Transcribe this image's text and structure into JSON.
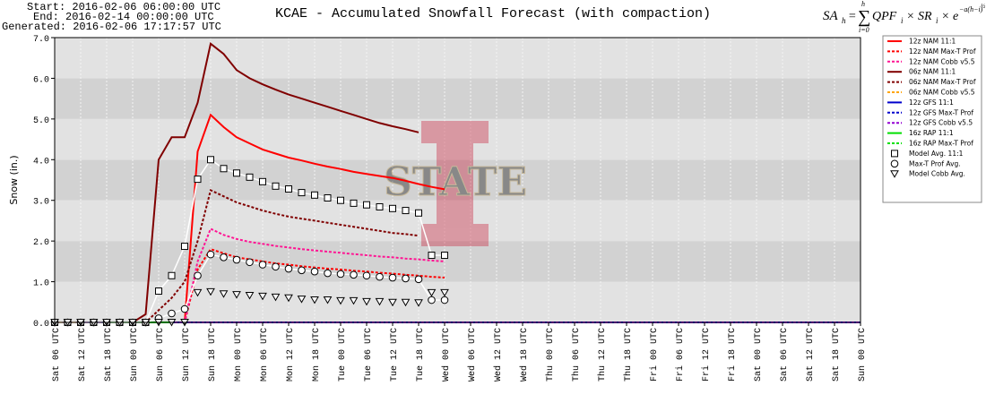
{
  "header": {
    "start": "Start: 2016-02-06 06:00:00 UTC",
    "end": "End: 2016-02-14 00:00:00 UTC",
    "generated": "Generated: 2016-02-06 17:17:57 UTC"
  },
  "formula": [
    "SA",
    "h",
    "=",
    "∑",
    "h",
    "i=0",
    "QPF",
    "i",
    "× SR",
    "i",
    "× e",
    "−a(h−i)",
    "½"
  ],
  "watermark": "STATE",
  "chart_data": {
    "type": "line",
    "title": "KCAE - Accumulated Snowfall Forecast (with compaction)",
    "y_label": "Snow (in.)",
    "legend": "right",
    "grid": true,
    "x": [
      0,
      3,
      6,
      9,
      12,
      15,
      18,
      21,
      24,
      27,
      30,
      33,
      36,
      39,
      42,
      45,
      48,
      51,
      54,
      57,
      60,
      63,
      66,
      69,
      72,
      75,
      78,
      81,
      84,
      87,
      90,
      186
    ],
    "xlim": [
      0,
      186
    ],
    "xticks": [
      {
        "value": 0,
        "label": "Sat 06 UTC"
      },
      {
        "value": 6,
        "label": "Sat 12 UTC"
      },
      {
        "value": 12,
        "label": "Sat 18 UTC"
      },
      {
        "value": 18,
        "label": "Sun 00 UTC"
      },
      {
        "value": 24,
        "label": "Sun 06 UTC"
      },
      {
        "value": 30,
        "label": "Sun 12 UTC"
      },
      {
        "value": 36,
        "label": "Sun 18 UTC"
      },
      {
        "value": 42,
        "label": "Mon 00 UTC"
      },
      {
        "value": 48,
        "label": "Mon 06 UTC"
      },
      {
        "value": 54,
        "label": "Mon 12 UTC"
      },
      {
        "value": 60,
        "label": "Mon 18 UTC"
      },
      {
        "value": 66,
        "label": "Tue 00 UTC"
      },
      {
        "value": 72,
        "label": "Tue 06 UTC"
      },
      {
        "value": 78,
        "label": "Tue 12 UTC"
      },
      {
        "value": 84,
        "label": "Tue 18 UTC"
      },
      {
        "value": 90,
        "label": "Wed 00 UTC"
      },
      {
        "value": 96,
        "label": "Wed 06 UTC"
      },
      {
        "value": 102,
        "label": "Wed 12 UTC"
      },
      {
        "value": 108,
        "label": "Wed 18 UTC"
      },
      {
        "value": 114,
        "label": "Thu 00 UTC"
      },
      {
        "value": 120,
        "label": "Thu 06 UTC"
      },
      {
        "value": 126,
        "label": "Thu 12 UTC"
      },
      {
        "value": 132,
        "label": "Thu 18 UTC"
      },
      {
        "value": 138,
        "label": "Fri 00 UTC"
      },
      {
        "value": 144,
        "label": "Fri 06 UTC"
      },
      {
        "value": 150,
        "label": "Fri 12 UTC"
      },
      {
        "value": 156,
        "label": "Fri 18 UTC"
      },
      {
        "value": 162,
        "label": "Sat 00 UTC"
      },
      {
        "value": 168,
        "label": "Sat 06 UTC"
      },
      {
        "value": 174,
        "label": "Sat 12 UTC"
      },
      {
        "value": 180,
        "label": "Sat 18 UTC"
      },
      {
        "value": 186,
        "label": "Sun 00 UTC"
      }
    ],
    "ylim": [
      0,
      7
    ],
    "yticks": [
      {
        "value": 0,
        "label": "0.0"
      },
      {
        "value": 1,
        "label": "1.0"
      },
      {
        "value": 2,
        "label": "2.0"
      },
      {
        "value": 3,
        "label": "3.0"
      },
      {
        "value": 4,
        "label": "4.0"
      },
      {
        "value": 5,
        "label": "5.0"
      },
      {
        "value": 6,
        "label": "6.0"
      },
      {
        "value": 7,
        "label": "7.0"
      }
    ],
    "series": [
      {
        "name": "12z NAM 11:1",
        "color": "#ff0000",
        "style": "solid",
        "values": [
          null,
          null,
          0,
          0,
          0,
          0,
          0,
          0,
          0,
          0,
          0,
          4.2,
          5.1,
          4.8,
          4.55,
          4.4,
          4.25,
          4.15,
          4.05,
          3.98,
          3.9,
          3.83,
          3.77,
          3.7,
          3.65,
          3.6,
          3.55,
          3.48,
          3.4,
          3.33,
          3.27,
          null
        ]
      },
      {
        "name": "12z NAM Max-T Prof",
        "color": "#ff0000",
        "style": "dashed",
        "values": [
          null,
          null,
          0,
          0,
          0,
          0,
          0,
          0,
          0,
          0,
          0,
          1.3,
          1.8,
          1.7,
          1.6,
          1.55,
          1.5,
          1.45,
          1.42,
          1.38,
          1.35,
          1.32,
          1.3,
          1.27,
          1.25,
          1.22,
          1.2,
          1.17,
          1.15,
          1.12,
          1.1,
          null
        ]
      },
      {
        "name": "12z NAM Cobb v5.5",
        "color": "#ff1493",
        "style": "dashed",
        "values": [
          null,
          null,
          0,
          0,
          0,
          0,
          0,
          0,
          0,
          0,
          0,
          1.5,
          2.3,
          2.15,
          2.05,
          1.98,
          1.93,
          1.88,
          1.84,
          1.8,
          1.77,
          1.74,
          1.71,
          1.68,
          1.65,
          1.62,
          1.6,
          1.57,
          1.55,
          1.52,
          1.5,
          null
        ]
      },
      {
        "name": "06z NAM 11:1",
        "color": "#800000",
        "style": "solid",
        "values": [
          0,
          0,
          0,
          0,
          0,
          0,
          0,
          0.2,
          4.0,
          4.55,
          4.55,
          5.4,
          6.85,
          6.6,
          6.2,
          6.0,
          5.85,
          5.72,
          5.6,
          5.5,
          5.4,
          5.3,
          5.2,
          5.1,
          5.0,
          4.9,
          4.82,
          4.75,
          4.67,
          null,
          null,
          null
        ]
      },
      {
        "name": "06z NAM Max-T Prof",
        "color": "#800000",
        "style": "dashed",
        "values": [
          0,
          0,
          0,
          0,
          0,
          0,
          0,
          0,
          0.3,
          0.6,
          1.0,
          2.0,
          3.25,
          3.1,
          2.95,
          2.85,
          2.75,
          2.67,
          2.6,
          2.55,
          2.5,
          2.45,
          2.4,
          2.35,
          2.3,
          2.25,
          2.2,
          2.17,
          2.13,
          null,
          null,
          null
        ]
      },
      {
        "name": "06z NAM Cobb v5.5",
        "color": "#ffa500",
        "style": "dashed",
        "values": [
          0,
          0,
          0,
          0,
          0,
          0,
          0,
          0,
          0,
          0,
          0,
          0,
          0,
          0,
          0,
          0,
          0,
          0,
          0,
          0,
          0,
          0,
          0,
          0,
          0,
          0,
          0,
          0,
          0,
          null,
          null,
          null
        ]
      },
      {
        "name": "12z GFS 11:1",
        "color": "#0000cd",
        "style": "solid",
        "values": [
          null,
          null,
          0,
          0,
          0,
          0,
          0,
          0,
          0,
          0,
          0,
          0,
          0,
          0,
          0,
          0,
          0,
          0,
          0,
          0,
          0,
          0,
          0,
          0,
          0,
          0,
          0,
          0,
          0,
          0,
          0,
          0
        ]
      },
      {
        "name": "12z GFS Max-T Prof",
        "color": "#0000cd",
        "style": "dashed",
        "values": [
          null,
          null,
          0,
          0,
          0,
          0,
          0,
          0,
          0,
          0,
          0,
          0,
          0,
          0,
          0,
          0,
          0,
          0,
          0,
          0,
          0,
          0,
          0,
          0,
          0,
          0,
          0,
          0,
          0,
          0,
          0,
          0
        ]
      },
      {
        "name": "12z GFS Cobb v5.5",
        "color": "#9400d3",
        "style": "dashed",
        "values": [
          null,
          null,
          0,
          0,
          0,
          0,
          0,
          0,
          0,
          0,
          0,
          0,
          0,
          0,
          0,
          0,
          0,
          0,
          0,
          0,
          0,
          0,
          0,
          0,
          0,
          0,
          0,
          0,
          0,
          0,
          0,
          0
        ]
      },
      {
        "name": "16z RAP 11:1",
        "color": "#00e000",
        "style": "solid",
        "values": [
          null,
          null,
          null,
          null,
          0,
          0,
          0,
          0,
          0,
          0,
          null,
          null,
          null,
          null,
          null,
          null,
          null,
          null,
          null,
          null,
          null,
          null,
          null,
          null,
          null,
          null,
          null,
          null,
          null,
          null,
          null,
          null
        ]
      },
      {
        "name": "16z RAP Max-T Prof",
        "color": "#00e000",
        "style": "dashed",
        "values": [
          null,
          null,
          null,
          null,
          0,
          0,
          0,
          0,
          0,
          0,
          null,
          null,
          null,
          null,
          null,
          null,
          null,
          null,
          null,
          null,
          null,
          null,
          null,
          null,
          null,
          null,
          null,
          null,
          null,
          null,
          null,
          null
        ]
      },
      {
        "name": "Model Avg. 11:1",
        "color": "#ffffff",
        "style": "solid",
        "marker": "square",
        "marker_edge": "#000000",
        "values": [
          0,
          0,
          0,
          0,
          0,
          0,
          0,
          0,
          0.77,
          1.15,
          1.87,
          3.52,
          4.0,
          3.78,
          3.67,
          3.57,
          3.46,
          3.35,
          3.28,
          3.19,
          3.13,
          3.06,
          3.0,
          2.93,
          2.89,
          2.84,
          2.8,
          2.75,
          2.69,
          1.65,
          1.65,
          null
        ]
      },
      {
        "name": "Max-T Prof Avg.",
        "color": "#ffffff",
        "style": "solid",
        "marker": "circle",
        "marker_edge": "#000000",
        "values": [
          0,
          0,
          0,
          0,
          0,
          0,
          0,
          0,
          0.1,
          0.22,
          0.33,
          1.15,
          1.67,
          1.6,
          1.54,
          1.48,
          1.42,
          1.37,
          1.32,
          1.28,
          1.25,
          1.21,
          1.19,
          1.17,
          1.15,
          1.12,
          1.1,
          1.08,
          1.06,
          0.55,
          0.55,
          null
        ]
      },
      {
        "name": "Model Cobb Avg.",
        "color": "#ffffff",
        "style": "none",
        "marker": "triangle",
        "marker_edge": "#000000",
        "values": [
          0,
          0,
          0,
          0,
          0,
          0,
          0,
          0,
          0,
          0,
          0,
          0.73,
          0.75,
          0.7,
          0.68,
          0.66,
          0.64,
          0.62,
          0.6,
          0.57,
          0.55,
          0.55,
          0.53,
          0.53,
          0.51,
          0.51,
          0.49,
          0.49,
          0.48,
          0.73,
          0.73,
          null
        ]
      }
    ]
  }
}
